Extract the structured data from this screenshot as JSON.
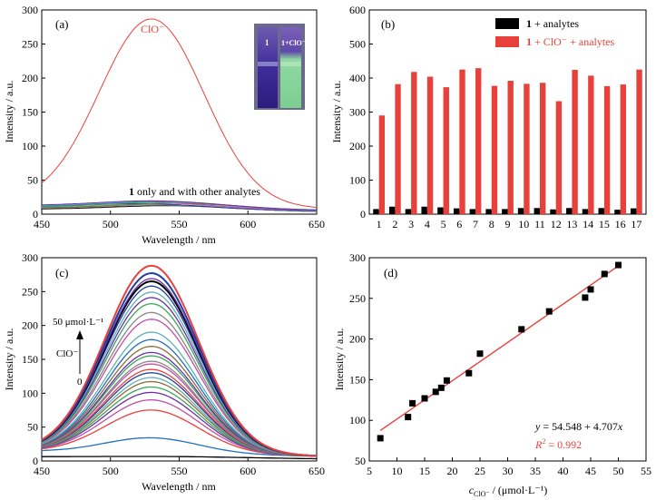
{
  "chart_data": [
    {
      "panel": "(a)",
      "type": "line",
      "xlabel": "Wavelength / nm",
      "ylabel": "Intensity / a.u.",
      "xlim": [
        450,
        650
      ],
      "ylim": [
        0,
        300
      ],
      "xticks": [
        450,
        500,
        550,
        600,
        650
      ],
      "yticks": [
        0,
        50,
        100,
        150,
        200,
        250,
        300
      ],
      "annotation_clo": "ClO⁻",
      "annotation_bold": "1",
      "annotation_rest": " only and with other analytes",
      "inset_label_left": "1",
      "inset_label_right": "1+ClO⁻",
      "series": [
        {
          "name": "ClO⁻",
          "color": "#e8413c",
          "peak_x": 530,
          "peak_y": 290,
          "base_y": 16,
          "width": 38
        },
        {
          "color": "#6a2fa8",
          "peak_x": 535,
          "peak_y": 22,
          "base_y": 12,
          "width": 45
        },
        {
          "color": "#2a8fbf",
          "peak_x": 540,
          "peak_y": 21,
          "base_y": 11,
          "width": 45
        },
        {
          "color": "#3aa655",
          "peak_x": 545,
          "peak_y": 20,
          "base_y": 10,
          "width": 45
        },
        {
          "color": "#c24ea6",
          "peak_x": 530,
          "peak_y": 19,
          "base_y": 10,
          "width": 45
        },
        {
          "color": "#8a6d3b",
          "peak_x": 550,
          "peak_y": 18,
          "base_y": 9,
          "width": 45
        },
        {
          "color": "#1f3f9f",
          "peak_x": 525,
          "peak_y": 17,
          "base_y": 9,
          "width": 45
        },
        {
          "color": "#5fb0b7",
          "peak_x": 535,
          "peak_y": 16,
          "base_y": 8,
          "width": 45
        },
        {
          "color": "#888888",
          "peak_x": 540,
          "peak_y": 15,
          "base_y": 8,
          "width": 45
        },
        {
          "color": "#000000",
          "peak_x": 545,
          "peak_y": 14,
          "base_y": 7,
          "width": 45
        }
      ]
    },
    {
      "panel": "(b)",
      "type": "bar",
      "xlabel": "",
      "ylabel": "Intensity / a.u.",
      "ylim": [
        0,
        600
      ],
      "yticks": [
        0,
        100,
        200,
        300,
        400,
        500,
        600
      ],
      "categories": [
        "1",
        "2",
        "3",
        "4",
        "5",
        "6",
        "7",
        "8",
        "9",
        "10",
        "11",
        "12",
        "13",
        "14",
        "15",
        "16",
        "17"
      ],
      "legend_placement": "top-right",
      "series": [
        {
          "name_bold": "1",
          "name": " + analytes",
          "color": "#000000",
          "values": [
            15,
            22,
            15,
            22,
            20,
            17,
            15,
            15,
            15,
            18,
            18,
            14,
            18,
            15,
            18,
            13,
            17
          ]
        },
        {
          "name_bold": "1",
          "name": " + ClO⁻ + analytes",
          "color": "#e8413c",
          "values": [
            290,
            382,
            418,
            404,
            373,
            425,
            429,
            377,
            392,
            383,
            386,
            332,
            424,
            407,
            376,
            381,
            425
          ]
        }
      ]
    },
    {
      "panel": "(c)",
      "type": "line",
      "xlabel": "Wavelength / nm",
      "ylabel": "Intensity / a.u.",
      "xlim": [
        450,
        650
      ],
      "ylim": [
        0,
        300
      ],
      "xticks": [
        450,
        500,
        550,
        600,
        650
      ],
      "yticks": [
        0,
        50,
        100,
        150,
        200,
        250,
        300
      ],
      "arrow_top_label": "50 μmol·L⁻¹",
      "arrow_mid_label": "ClO⁻",
      "arrow_bottom_label": "0",
      "peaks": [
        8,
        37,
        78,
        93,
        104,
        112,
        120,
        126,
        133,
        138,
        146,
        150,
        158,
        163,
        172,
        182,
        193,
        212,
        222,
        235,
        244,
        252,
        261,
        268,
        272,
        280,
        291
      ],
      "colors": [
        "#000000",
        "#1f6fbf",
        "#e8413c",
        "#c24ea6",
        "#6a2fa8",
        "#3aa655",
        "#8a6d3b",
        "#5fb0b7",
        "#1f3f9f",
        "#e8413c",
        "#c24ea6",
        "#888888",
        "#3aa655",
        "#6a2fa8",
        "#8a6d3b",
        "#1f6fbf",
        "#5fb0b7",
        "#c24ea6",
        "#888888",
        "#3aa655",
        "#6a2fa8",
        "#5fb0b7",
        "#1f3f9f",
        "#000000",
        "#6a2fa8",
        "#1f3f9f",
        "#e8413c"
      ]
    },
    {
      "panel": "(d)",
      "type": "scatter",
      "xlabel_c": "c",
      "xlabel_sub": "ClO⁻",
      "xlabel_rest": " / (μmol·L⁻¹)",
      "ylabel": "Intensity / a.u.",
      "xlim": [
        5,
        55
      ],
      "ylim": [
        50,
        300
      ],
      "xticks": [
        5,
        10,
        15,
        20,
        25,
        30,
        35,
        40,
        45,
        50,
        55
      ],
      "yticks": [
        50,
        100,
        150,
        200,
        250,
        300
      ],
      "equation_y": "y",
      "equation_mid": " = 54.548 + 4.707",
      "equation_x": "x",
      "r2_r": "R",
      "r2_rest": " = 0.992",
      "fit": {
        "intercept": 54.548,
        "slope": 4.707,
        "x_range": [
          7,
          50
        ],
        "color": "#e8413c"
      },
      "points": [
        [
          7,
          78
        ],
        [
          12,
          104
        ],
        [
          12.8,
          121
        ],
        [
          15,
          127
        ],
        [
          17,
          135
        ],
        [
          18,
          140
        ],
        [
          19,
          149
        ],
        [
          23,
          158
        ],
        [
          25,
          182
        ],
        [
          32.5,
          212
        ],
        [
          37.5,
          234
        ],
        [
          44,
          251
        ],
        [
          45,
          261
        ],
        [
          47.5,
          280
        ],
        [
          50,
          291
        ]
      ]
    }
  ]
}
